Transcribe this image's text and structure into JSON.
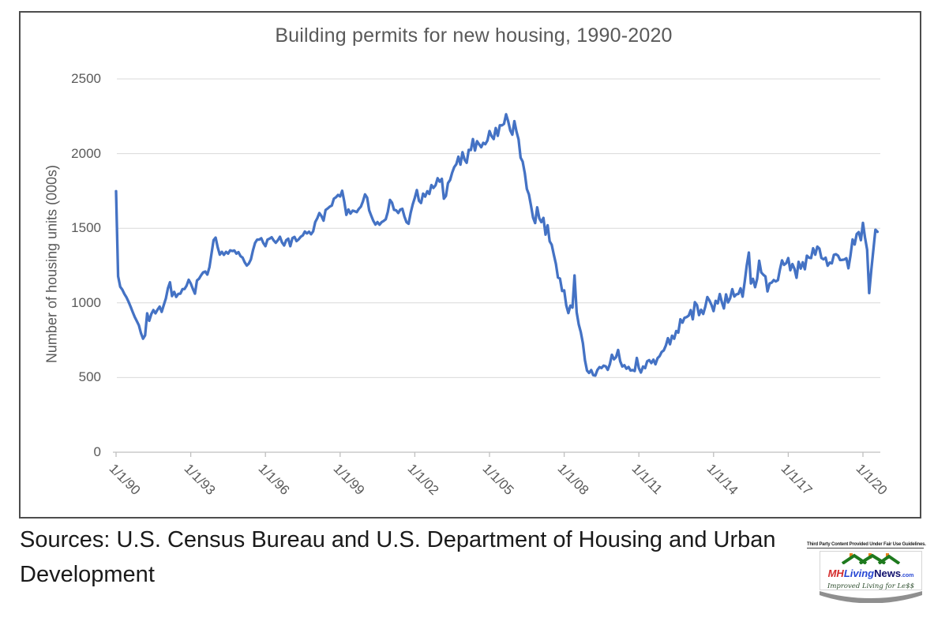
{
  "chart_data": {
    "type": "line",
    "title": "Building permits for new housing, 1990-2020",
    "xlabel": "",
    "ylabel": "Number of housing units (000s)",
    "ylim": [
      0,
      2500
    ],
    "y_ticks": [
      0,
      500,
      1000,
      1500,
      2000,
      2500
    ],
    "x_tick_labels": [
      "1/1/90",
      "1/1/93",
      "1/1/96",
      "1/1/99",
      "1/1/02",
      "1/1/05",
      "1/1/08",
      "1/1/11",
      "1/1/14",
      "1/1/17",
      "1/1/20"
    ],
    "x_frequency": "monthly",
    "x_range_start": "1/1/90",
    "x_range_end": "8/1/20",
    "grid": "horizontal",
    "legend": "none",
    "line_color": "#4472C4",
    "values": [
      1748,
      1178,
      1108,
      1089,
      1060,
      1038,
      1008,
      975,
      940,
      905,
      878,
      850,
      798,
      760,
      783,
      930,
      880,
      926,
      952,
      930,
      955,
      975,
      940,
      985,
      1030,
      1098,
      1138,
      1046,
      1074,
      1040,
      1060,
      1062,
      1092,
      1093,
      1115,
      1155,
      1130,
      1095,
      1062,
      1150,
      1162,
      1185,
      1205,
      1210,
      1190,
      1240,
      1330,
      1420,
      1437,
      1371,
      1323,
      1342,
      1322,
      1342,
      1330,
      1352,
      1347,
      1351,
      1330,
      1340,
      1313,
      1303,
      1272,
      1250,
      1264,
      1292,
      1352,
      1402,
      1424,
      1424,
      1433,
      1400,
      1380,
      1424,
      1430,
      1440,
      1418,
      1403,
      1420,
      1443,
      1405,
      1385,
      1420,
      1430,
      1380,
      1434,
      1442,
      1414,
      1425,
      1443,
      1452,
      1478,
      1465,
      1477,
      1460,
      1479,
      1542,
      1567,
      1602,
      1582,
      1551,
      1622,
      1632,
      1645,
      1652,
      1698,
      1707,
      1723,
      1713,
      1751,
      1678,
      1590,
      1626,
      1598,
      1618,
      1614,
      1608,
      1629,
      1645,
      1680,
      1727,
      1705,
      1620,
      1584,
      1550,
      1525,
      1541,
      1524,
      1541,
      1549,
      1560,
      1610,
      1690,
      1672,
      1623,
      1620,
      1602,
      1625,
      1630,
      1577,
      1540,
      1530,
      1602,
      1660,
      1704,
      1756,
      1684,
      1669,
      1732,
      1712,
      1748,
      1730,
      1789,
      1770,
      1788,
      1835,
      1812,
      1831,
      1698,
      1716,
      1802,
      1823,
      1872,
      1909,
      1929,
      1979,
      1926,
      2009,
      1958,
      1938,
      2025,
      2024,
      2097,
      2020,
      2083,
      2062,
      2043,
      2072,
      2063,
      2088,
      2151,
      2117,
      2097,
      2171,
      2119,
      2189,
      2189,
      2199,
      2263,
      2217,
      2155,
      2127,
      2217,
      2147,
      2095,
      1973,
      1946,
      1869,
      1763,
      1727,
      1650,
      1571,
      1535,
      1640,
      1566,
      1541,
      1569,
      1457,
      1520,
      1413,
      1389,
      1322,
      1261,
      1170,
      1162,
      1080,
      1084,
      984,
      932,
      982,
      969,
      1184,
      937,
      857,
      805,
      730,
      616,
      547,
      531,
      550,
      516,
      513,
      550,
      570,
      564,
      580,
      575,
      552,
      589,
      653,
      622,
      637,
      685,
      610,
      574,
      583,
      559,
      571,
      547,
      550,
      544,
      631,
      563,
      534,
      574,
      563,
      609,
      617,
      597,
      620,
      589,
      630,
      644,
      672,
      682,
      715,
      764,
      723,
      780,
      760,
      812,
      801,
      890,
      868,
      900,
      905,
      915,
      952,
      890,
      1005,
      985,
      918,
      954,
      926,
      974,
      1039,
      1017,
      986,
      945,
      1014,
      997,
      1059,
      1005,
      963,
      1057,
      1003,
      1031,
      1092,
      1043,
      1057,
      1060,
      1098,
      1042,
      1140,
      1250,
      1337,
      1130,
      1161,
      1105,
      1161,
      1282,
      1204,
      1188,
      1177,
      1077,
      1130,
      1136,
      1153,
      1144,
      1152,
      1225,
      1285,
      1255,
      1266,
      1300,
      1219,
      1260,
      1228,
      1168,
      1275,
      1230,
      1272,
      1225,
      1316,
      1303,
      1300,
      1366,
      1323,
      1377,
      1364,
      1301,
      1292,
      1303,
      1249,
      1270,
      1265,
      1322,
      1326,
      1316,
      1287,
      1288,
      1290,
      1299,
      1232,
      1317,
      1425,
      1391,
      1461,
      1474,
      1420,
      1536,
      1438,
      1356,
      1066,
      1216,
      1350,
      1490,
      1476
    ]
  },
  "sources": {
    "line1": "Sources: U.S. Census Bureau and U.S. Department of Housing and Urban",
    "line2": "Development"
  },
  "logo": {
    "fair_use": "Third Party Content Provided Under Fair Use Guidelines.",
    "brand_mh": "MH",
    "brand_living": "Living",
    "brand_news": "News",
    "brand_com": ".com",
    "tagline": "Improved Living for Le$$"
  },
  "colors": {
    "line": "#4472C4",
    "gridline": "#D9D9D9",
    "axis": "#BFBFBF",
    "chart_text": "#595959"
  }
}
